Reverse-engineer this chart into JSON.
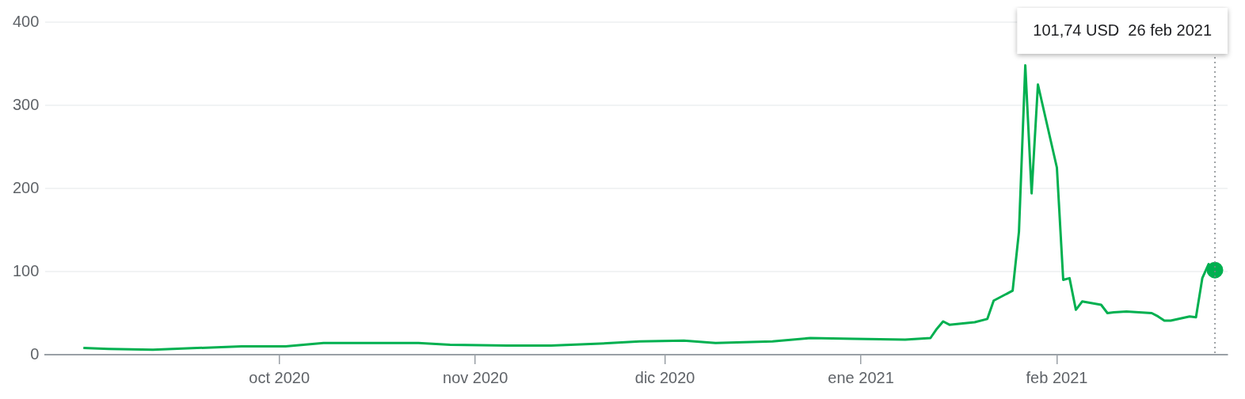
{
  "chart_data": {
    "type": "line",
    "x": [
      "2020-08-31",
      "2020-09-04",
      "2020-09-11",
      "2020-09-18",
      "2020-09-25",
      "2020-10-02",
      "2020-10-08",
      "2020-10-16",
      "2020-10-23",
      "2020-10-28",
      "2020-11-06",
      "2020-11-13",
      "2020-11-20",
      "2020-11-27",
      "2020-12-04",
      "2020-12-09",
      "2020-12-18",
      "2020-12-24",
      "2020-12-31",
      "2021-01-08",
      "2021-01-12",
      "2021-01-13",
      "2021-01-14",
      "2021-01-15",
      "2021-01-19",
      "2021-01-21",
      "2021-01-22",
      "2021-01-25",
      "2021-01-26",
      "2021-01-27",
      "2021-01-28",
      "2021-01-29",
      "2021-02-01",
      "2021-02-02",
      "2021-02-03",
      "2021-02-04",
      "2021-02-05",
      "2021-02-08",
      "2021-02-09",
      "2021-02-10",
      "2021-02-12",
      "2021-02-16",
      "2021-02-17",
      "2021-02-18",
      "2021-02-19",
      "2021-02-22",
      "2021-02-23",
      "2021-02-24",
      "2021-02-25",
      "2021-02-26"
    ],
    "series": [
      {
        "color": "#00b050",
        "values": [
          8,
          7,
          6,
          8,
          10,
          10,
          14,
          14,
          14,
          12,
          11,
          11,
          13,
          16,
          17,
          14,
          16,
          20,
          19,
          18,
          20,
          31,
          40,
          36,
          39,
          43,
          65,
          77,
          148,
          348,
          194,
          325,
          225,
          90,
          92,
          54,
          64,
          60,
          50,
          51,
          52,
          50,
          46,
          41,
          41,
          46,
          45,
          92,
          109,
          101.74
        ]
      },
      {
        "type": "scatter",
        "marker": "circle",
        "color": "#00b050",
        "x": [
          "2021-02-26"
        ],
        "values": [
          101.74
        ]
      }
    ],
    "xlim": [
      "2020-08-25",
      "2021-02-28"
    ],
    "xticks": [
      {
        "value": "2020-10-01",
        "label": "oct 2020"
      },
      {
        "value": "2020-11-01",
        "label": "nov 2020"
      },
      {
        "value": "2020-12-01",
        "label": "dic 2020"
      },
      {
        "value": "2021-01-01",
        "label": "ene 2021"
      },
      {
        "value": "2021-02-01",
        "label": "feb 2021"
      }
    ],
    "ylim": [
      0,
      400
    ],
    "yticks": [
      0,
      100,
      200,
      300,
      400
    ],
    "grid": "y",
    "legend": false,
    "marker": "none",
    "line_style": "solid",
    "ref_lines": [
      {
        "axis": "x",
        "value": "2021-02-26",
        "color": "#80868b",
        "line_style": "dotted"
      }
    ],
    "annotations": [
      "101,74 USD  26 feb 2021"
    ]
  }
}
